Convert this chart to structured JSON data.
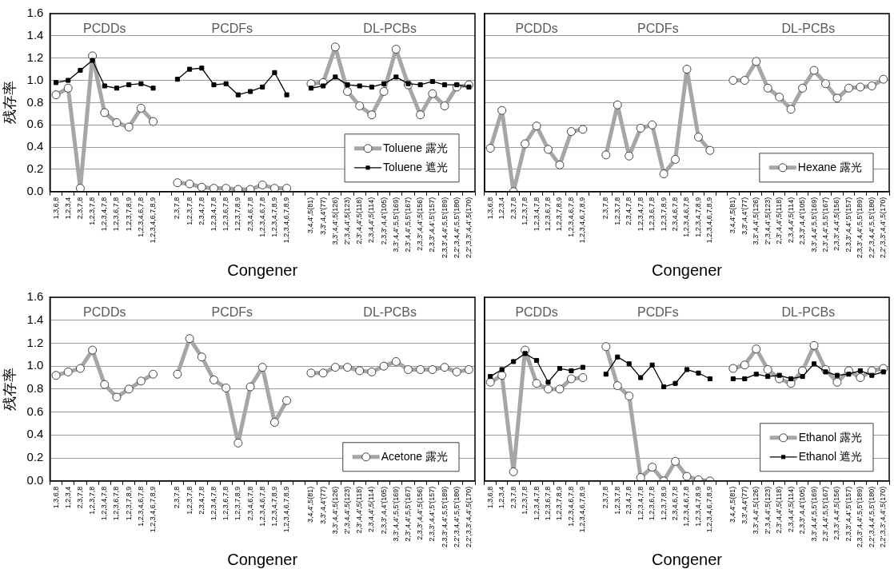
{
  "chart_data": [
    {
      "type": "line",
      "ylabel": "残存率",
      "xlabel": "Congener",
      "annotations": [
        "PCDDs",
        "PCDFs",
        "DL-PCBs"
      ],
      "grid": "y",
      "legend": "bottom right",
      "ylim": [
        0,
        1.6
      ],
      "yticks": [
        {
          "value": 0,
          "label": "0.0"
        },
        {
          "value": 0.2,
          "label": "0.2"
        },
        {
          "value": 0.4,
          "label": "0.4"
        },
        {
          "value": 0.6,
          "label": "0.6"
        },
        {
          "value": 0.8,
          "label": "0.8"
        },
        {
          "value": 1,
          "label": "1.0"
        },
        {
          "value": 1.2,
          "label": "1.2"
        },
        {
          "value": 1.4,
          "label": "1.4"
        },
        {
          "value": 1.6,
          "label": "1.6"
        }
      ],
      "categories": [
        "1,3,6,8",
        "1,2,3,4",
        "2,3,7,8",
        "1,2,3,7,8",
        "1,2,3,4,7,8",
        "1,2,3,6,7,8",
        "1,2,3,7,8,9",
        "1,2,3,4,6,7,8",
        "1,2,3,4,6,7,8,9",
        null,
        "2,3,7,8",
        "1,2,3,7,8",
        "2,3,4,7,8",
        "1,2,3,4,7,8",
        "1,2,3,6,7,8",
        "1,2,3,7,8,9",
        "2,3,4,6,7,8",
        "1,2,3,4,6,7,8",
        "1,2,3,4,7,8,9",
        "1,2,3,4,6,7,8,9",
        null,
        "3,4,4',5(81)",
        "3,3',4,4'(77)",
        "3,3',4,4',5(126)",
        "2',3,4,4',5(123)",
        "2,3',4,4',5(118)",
        "2,3,4,4',5(114)",
        "2,3,3',4,4'(105)",
        "3,3',4,4',5,5'(169)",
        "2,3',4,4',5,5'(167)",
        "2,3,3',4,4',5(156)",
        "2,3,3',4,4',5'(157)",
        "2,3,3',4,4',5,5'(189)",
        "2,2',3,4,4',5,5'(180)",
        "2,2',3,3',4,4',5(170)"
      ],
      "series": [
        {
          "name": "Toluene 露光",
          "color": "#a6a6a6",
          "marker": "circle",
          "values": [
            0.87,
            0.93,
            0.03,
            1.22,
            0.71,
            0.62,
            0.58,
            0.75,
            0.63,
            null,
            0.08,
            0.07,
            0.04,
            0.03,
            0.03,
            0.02,
            0.02,
            0.06,
            0.03,
            0.03,
            null,
            0.97,
            0.98,
            1.3,
            0.9,
            0.77,
            0.69,
            0.9,
            1.28,
            0.96,
            0.69,
            0.88,
            0.77,
            0.94,
            0.96
          ]
        },
        {
          "name": "Toluene 遮光",
          "color": "#000000",
          "marker": "square",
          "values": [
            0.98,
            1.0,
            1.09,
            1.18,
            0.95,
            0.93,
            0.96,
            0.97,
            0.93,
            null,
            1.01,
            1.1,
            1.11,
            0.96,
            0.97,
            0.87,
            0.9,
            0.94,
            1.07,
            0.87,
            null,
            0.93,
            0.95,
            1.03,
            0.96,
            0.95,
            0.94,
            0.97,
            1.03,
            0.97,
            0.96,
            0.99,
            0.96,
            0.96,
            0.94
          ]
        }
      ]
    },
    {
      "type": "line",
      "xlabel": "Congener",
      "annotations": [
        "PCDDs",
        "PCDFs",
        "DL-PCBs"
      ],
      "grid": "y",
      "legend": "bottom right",
      "tick_labels": "x",
      "ylim": [
        0,
        1.6
      ],
      "yticks": [
        0,
        0.2,
        0.4,
        0.6,
        0.8,
        1,
        1.2,
        1.4,
        1.6
      ],
      "categories": [
        "1,3,6,8",
        "1,2,3,4",
        "2,3,7,8",
        "1,2,3,7,8",
        "1,2,3,4,7,8",
        "1,2,3,6,7,8",
        "1,2,3,7,8,9",
        "1,2,3,4,6,7,8",
        "1,2,3,4,6,7,8,9",
        null,
        "2,3,7,8",
        "1,2,3,7,8",
        "2,3,4,7,8",
        "1,2,3,4,7,8",
        "1,2,3,6,7,8",
        "1,2,3,7,8,9",
        "2,3,4,6,7,8",
        "1,2,3,4,6,7,8",
        "1,2,3,4,7,8,9",
        "1,2,3,4,6,7,8,9",
        null,
        "3,4,4',5(81)",
        "3,3',4,4'(77)",
        "3,3',4,4',5(126)",
        "2',3,4,4',5(123)",
        "2,3',4,4',5(118)",
        "2,3,4,4',5(114)",
        "2,3,3',4,4'(105)",
        "3,3',4,4',5,5'(169)",
        "2,3',4,4',5,5'(167)",
        "2,3,3',4,4',5(156)",
        "2,3,3',4,4',5'(157)",
        "2,3,3',4,4',5,5'(189)",
        "2,2',3,4,4',5,5'(180)",
        "2,2',3,3',4,4',5(170)"
      ],
      "series": [
        {
          "name": "Hexane 露光",
          "color": "#a6a6a6",
          "marker": "circle",
          "values": [
            0.39,
            0.73,
            0.0,
            0.43,
            0.59,
            0.38,
            0.24,
            0.54,
            0.56,
            null,
            0.33,
            0.78,
            0.32,
            0.57,
            0.6,
            0.16,
            0.29,
            1.1,
            0.49,
            0.37,
            null,
            1.0,
            1.0,
            1.17,
            0.93,
            0.85,
            0.74,
            0.93,
            1.09,
            0.97,
            0.84,
            0.93,
            0.94,
            0.95,
            1.01
          ]
        }
      ]
    },
    {
      "type": "line",
      "ylabel": "残存率",
      "xlabel": "Congener",
      "annotations": [
        "PCDDs",
        "PCDFs",
        "DL-PCBs"
      ],
      "grid": "y",
      "legend": "bottom right",
      "ylim": [
        0,
        1.6
      ],
      "yticks": [
        {
          "value": 0,
          "label": "0.0"
        },
        {
          "value": 0.2,
          "label": "0.2"
        },
        {
          "value": 0.4,
          "label": "0.4"
        },
        {
          "value": 0.6,
          "label": "0.6"
        },
        {
          "value": 0.8,
          "label": "0.8"
        },
        {
          "value": 1,
          "label": "1.0"
        },
        {
          "value": 1.2,
          "label": "1.2"
        },
        {
          "value": 1.4,
          "label": "1.4"
        },
        {
          "value": 1.6,
          "label": "1.6"
        }
      ],
      "categories": [
        "1,3,6,8",
        "1,2,3,4",
        "2,3,7,8",
        "1,2,3,7,8",
        "1,2,3,4,7,8",
        "1,2,3,6,7,8",
        "1,2,3,7,8,9",
        "1,2,3,4,6,7,8",
        "1,2,3,4,6,7,8,9",
        null,
        "2,3,7,8",
        "1,2,3,7,8",
        "2,3,4,7,8",
        "1,2,3,4,7,8",
        "1,2,3,6,7,8",
        "1,2,3,7,8,9",
        "2,3,4,6,7,8",
        "1,2,3,4,6,7,8",
        "1,2,3,4,7,8,9",
        "1,2,3,4,6,7,8,9",
        null,
        "3,4,4',5(81)",
        "3,3',4,4'(77)",
        "3,3',4,4',5(126)",
        "2',3,4,4',5(123)",
        "2,3',4,4',5(118)",
        "2,3,4,4',5(114)",
        "2,3,3',4,4'(105)",
        "3,3',4,4',5,5'(169)",
        "2,3',4,4',5,5'(167)",
        "2,3,3',4,4',5(156)",
        "2,3,3',4,4',5'(157)",
        "2,3,3',4,4',5,5'(189)",
        "2,2',3,4,4',5,5'(180)",
        "2,2',3,3',4,4',5(170)"
      ],
      "series": [
        {
          "name": "Acetone 露光",
          "color": "#a6a6a6",
          "marker": "circle",
          "values": [
            0.92,
            0.95,
            0.98,
            1.14,
            0.84,
            0.73,
            0.8,
            0.87,
            0.93,
            null,
            0.93,
            1.24,
            1.08,
            0.88,
            0.81,
            0.33,
            0.82,
            0.99,
            0.51,
            0.7,
            null,
            0.94,
            0.94,
            0.99,
            0.99,
            0.96,
            0.95,
            1.0,
            1.04,
            0.97,
            0.97,
            0.97,
            0.99,
            0.95,
            0.97
          ]
        }
      ]
    },
    {
      "type": "line",
      "xlabel": "Congener",
      "annotations": [
        "PCDDs",
        "PCDFs",
        "DL-PCBs"
      ],
      "grid": "y",
      "legend": "bottom right",
      "tick_labels": "x",
      "ylim": [
        0,
        1.6
      ],
      "yticks": [
        0,
        0.2,
        0.4,
        0.6,
        0.8,
        1,
        1.2,
        1.4,
        1.6
      ],
      "categories": [
        "1,3,6,8",
        "1,2,3,4",
        "2,3,7,8",
        "1,2,3,7,8",
        "1,2,3,4,7,8",
        "1,2,3,6,7,8",
        "1,2,3,7,8,9",
        "1,2,3,4,6,7,8",
        "1,2,3,4,6,7,8,9",
        null,
        "2,3,7,8",
        "1,2,3,7,8",
        "2,3,4,7,8",
        "1,2,3,4,7,8",
        "1,2,3,6,7,8",
        "1,2,3,7,8,9",
        "2,3,4,6,7,8",
        "1,2,3,4,6,7,8",
        "1,2,3,4,7,8,9",
        "1,2,3,4,6,7,8,9",
        null,
        "3,4,4',5(81)",
        "3,3',4,4'(77)",
        "3,3',4,4',5(126)",
        "2',3,4,4',5(123)",
        "2,3',4,4',5(118)",
        "2,3,4,4',5(114)",
        "2,3,3',4,4'(105)",
        "3,3',4,4',5,5'(169)",
        "2,3',4,4',5,5'(167)",
        "2,3,3',4,4',5(156)",
        "2,3,3',4,4',5'(157)",
        "2,3,3',4,4',5,5'(189)",
        "2,2',3,4,4',5,5'(180)",
        "2,2',3,3',4,4',5(170)"
      ],
      "series": [
        {
          "name": "Ethanol 露光",
          "color": "#a6a6a6",
          "marker": "circle",
          "values": [
            0.86,
            0.92,
            0.08,
            1.14,
            0.85,
            0.8,
            0.8,
            0.89,
            0.9,
            null,
            1.17,
            0.83,
            0.74,
            0.03,
            0.12,
            0.0,
            0.17,
            0.04,
            0.01,
            0.0,
            null,
            0.98,
            1.01,
            1.15,
            0.97,
            0.89,
            0.85,
            0.96,
            1.18,
            0.97,
            0.86,
            0.96,
            0.9,
            0.96,
            0.98
          ]
        },
        {
          "name": "Ethanol 遮光",
          "color": "#000000",
          "marker": "square",
          "values": [
            0.91,
            0.97,
            1.04,
            1.11,
            1.05,
            0.86,
            0.98,
            0.96,
            0.99,
            null,
            0.93,
            1.08,
            1.02,
            0.9,
            1.01,
            0.82,
            0.85,
            0.97,
            0.94,
            0.89,
            null,
            0.89,
            0.89,
            0.93,
            0.91,
            0.92,
            0.89,
            0.91,
            1.02,
            0.95,
            0.92,
            0.93,
            0.96,
            0.92,
            0.95
          ]
        }
      ]
    }
  ]
}
